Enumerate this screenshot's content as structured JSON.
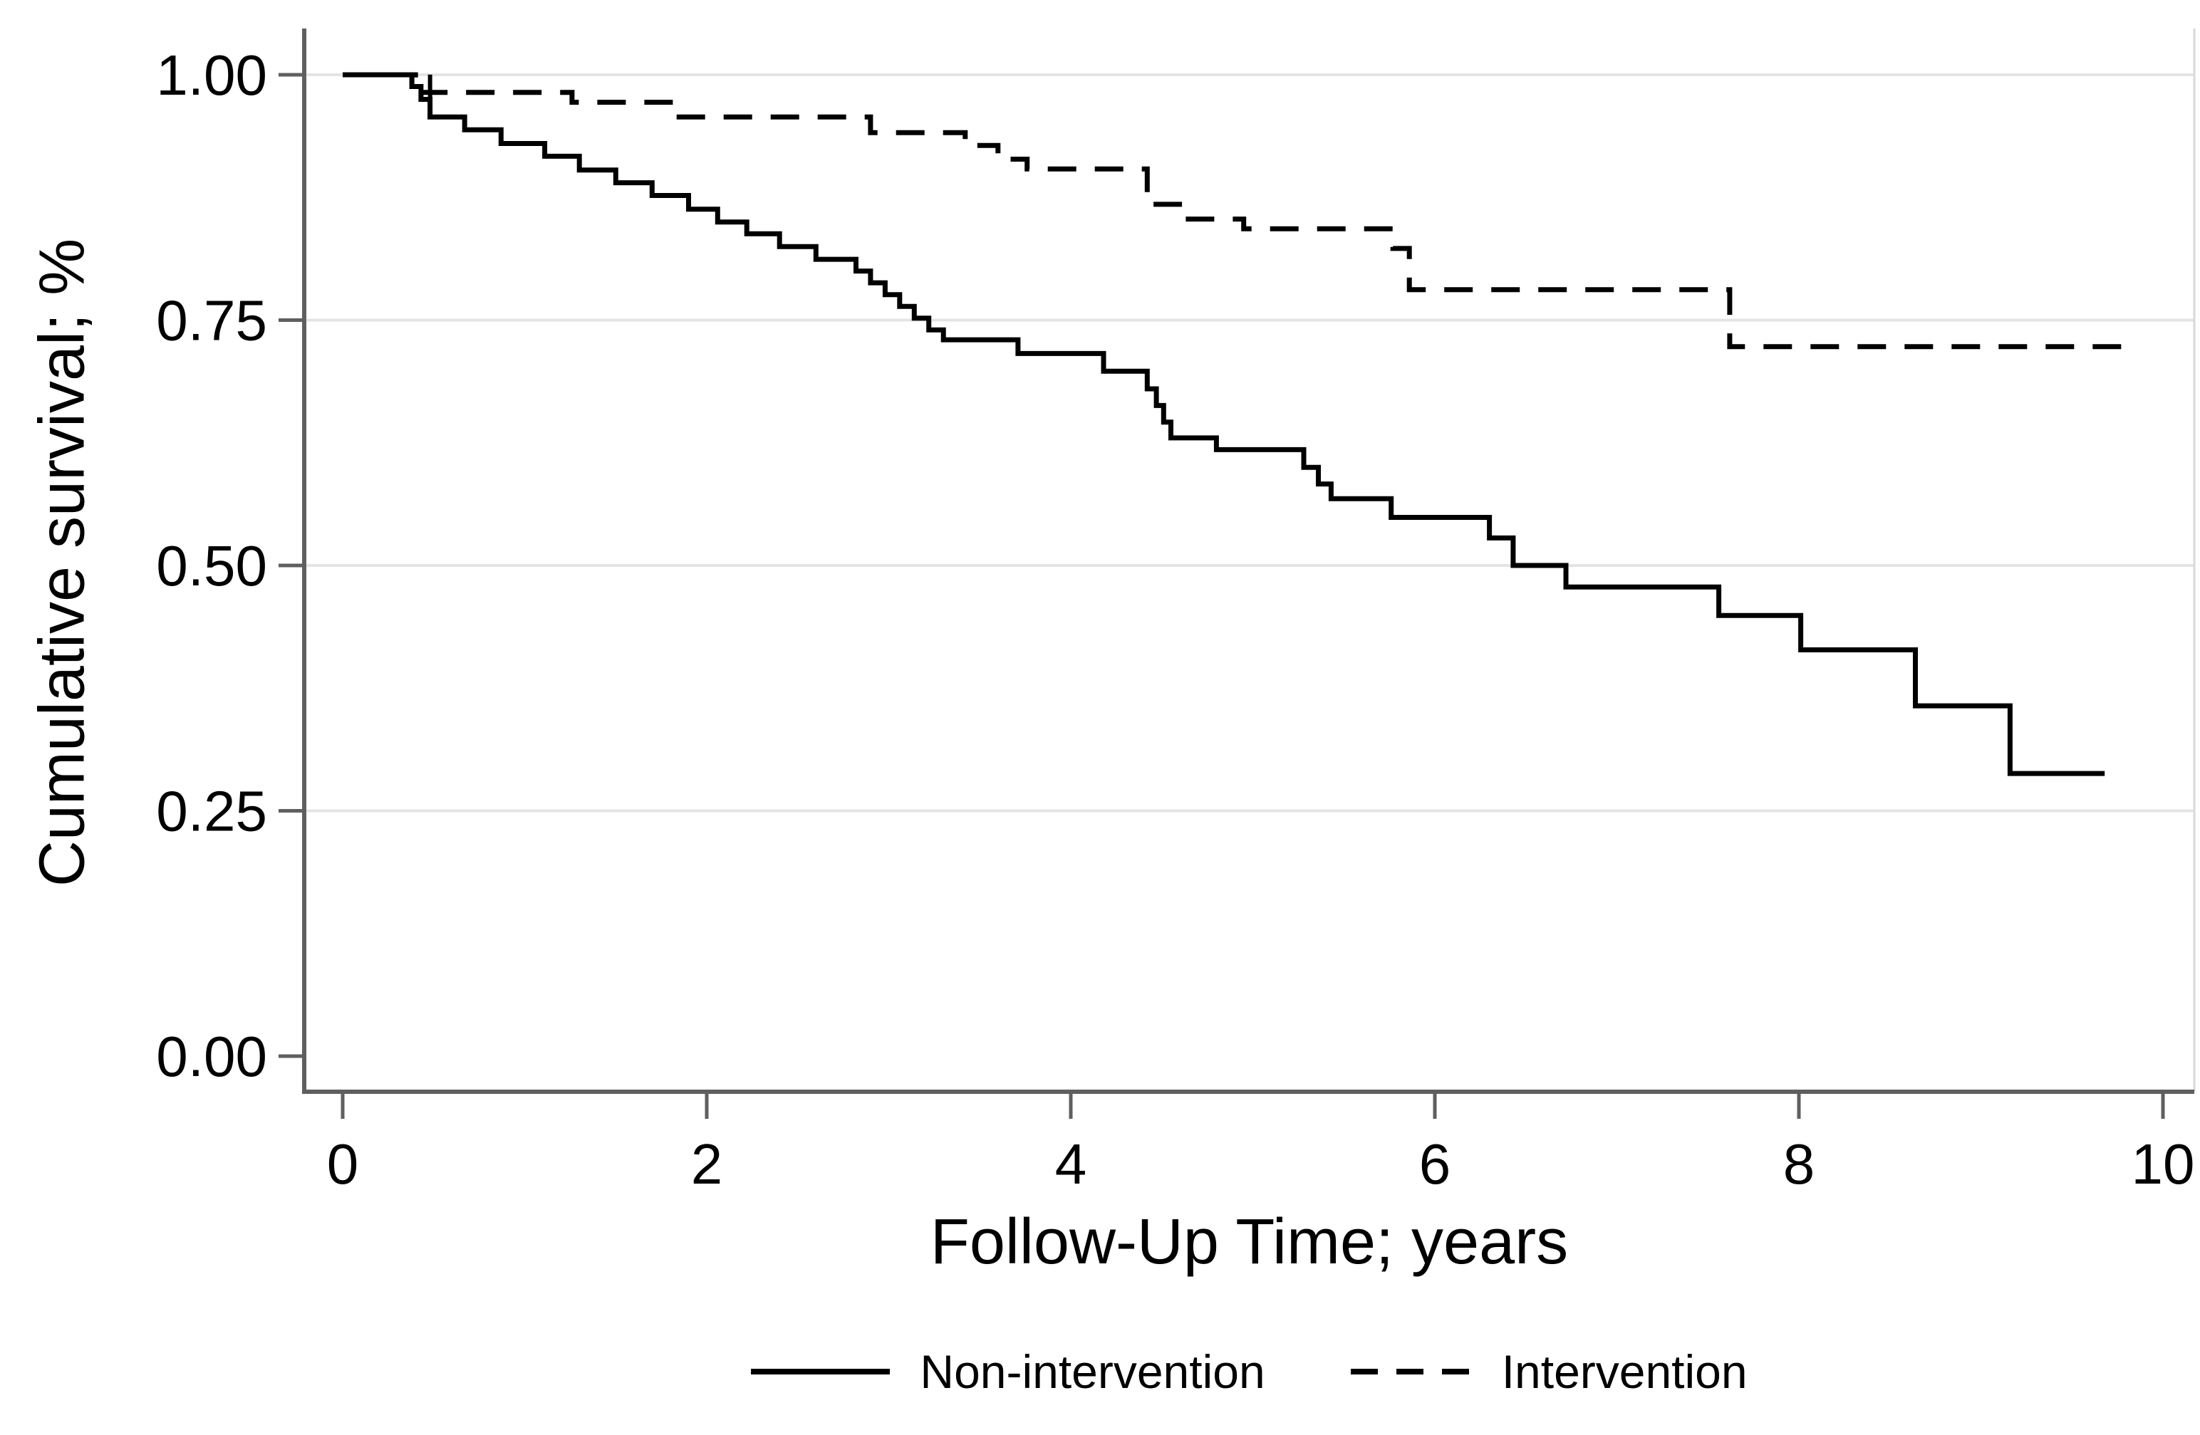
{
  "figure": {
    "background_color": "#ffffff",
    "text_color": "#000000",
    "axis_color": "#5f5f5f",
    "gridline_color": "#e4e4e4",
    "plot_border_color": "#d9d9d9",
    "curve_color": "#000000"
  },
  "chart_data": {
    "type": "line",
    "subtype": "kaplan-meier-step-survival",
    "title": "",
    "xlabel": "Follow-Up Time; years",
    "ylabel": "Cumulative survival; %",
    "xlim": [
      0,
      10
    ],
    "ylim": [
      0.0,
      1.0
    ],
    "grid": "horizontal",
    "gridline_values": [
      0.25,
      0.5,
      0.75,
      1.0
    ],
    "xticks": [
      {
        "label": "0",
        "value": 0
      },
      {
        "label": "2",
        "value": 2
      },
      {
        "label": "4",
        "value": 4
      },
      {
        "label": "6",
        "value": 6
      },
      {
        "label": "8",
        "value": 8
      },
      {
        "label": "10",
        "value": 10
      }
    ],
    "yticks": [
      {
        "label": "0.00",
        "value": 0.0
      },
      {
        "label": "0.25",
        "value": 0.25
      },
      {
        "label": "0.50",
        "value": 0.5
      },
      {
        "label": "0.75",
        "value": 0.75
      },
      {
        "label": "1.00",
        "value": 1.0
      }
    ],
    "legend_position": "bottom-center",
    "series": [
      {
        "name": "Non-intervention",
        "line_style": "solid",
        "color": "#000000",
        "points": [
          [
            0.0,
            1.0
          ],
          [
            0.38,
            0.988
          ],
          [
            0.43,
            0.975
          ],
          [
            0.48,
            0.957
          ],
          [
            0.67,
            0.944
          ],
          [
            0.87,
            0.93
          ],
          [
            1.11,
            0.917
          ],
          [
            1.3,
            0.903
          ],
          [
            1.5,
            0.89
          ],
          [
            1.7,
            0.877
          ],
          [
            1.9,
            0.863
          ],
          [
            2.06,
            0.85
          ],
          [
            2.22,
            0.838
          ],
          [
            2.4,
            0.825
          ],
          [
            2.6,
            0.812
          ],
          [
            2.82,
            0.8
          ],
          [
            2.9,
            0.788
          ],
          [
            2.98,
            0.776
          ],
          [
            3.06,
            0.764
          ],
          [
            3.14,
            0.752
          ],
          [
            3.22,
            0.74
          ],
          [
            3.3,
            0.73
          ],
          [
            3.71,
            0.716
          ],
          [
            4.18,
            0.698
          ],
          [
            4.42,
            0.68
          ],
          [
            4.47,
            0.663
          ],
          [
            4.51,
            0.646
          ],
          [
            4.55,
            0.63
          ],
          [
            4.8,
            0.618
          ],
          [
            5.28,
            0.6
          ],
          [
            5.36,
            0.583
          ],
          [
            5.43,
            0.568
          ],
          [
            5.76,
            0.549
          ],
          [
            6.3,
            0.528
          ],
          [
            6.43,
            0.5
          ],
          [
            6.72,
            0.478
          ],
          [
            7.56,
            0.449
          ],
          [
            8.01,
            0.414
          ],
          [
            8.64,
            0.357
          ],
          [
            9.16,
            0.288
          ],
          [
            9.68,
            0.288
          ]
        ],
        "censor_ticks": []
      },
      {
        "name": "Intervention",
        "line_style": "dashed",
        "color": "#000000",
        "points": [
          [
            0.0,
            1.0
          ],
          [
            0.4,
            0.982
          ],
          [
            1.26,
            0.972
          ],
          [
            1.82,
            0.957
          ],
          [
            2.9,
            0.941
          ],
          [
            3.42,
            0.928
          ],
          [
            3.6,
            0.914
          ],
          [
            3.76,
            0.904
          ],
          [
            4.42,
            0.868
          ],
          [
            4.62,
            0.853
          ],
          [
            4.95,
            0.843
          ],
          [
            5.77,
            0.823
          ],
          [
            5.86,
            0.781
          ],
          [
            7.62,
            0.723
          ],
          [
            9.85,
            0.723
          ]
        ],
        "censor_ticks": [
          [
            0.48,
            0.982
          ]
        ]
      }
    ]
  }
}
